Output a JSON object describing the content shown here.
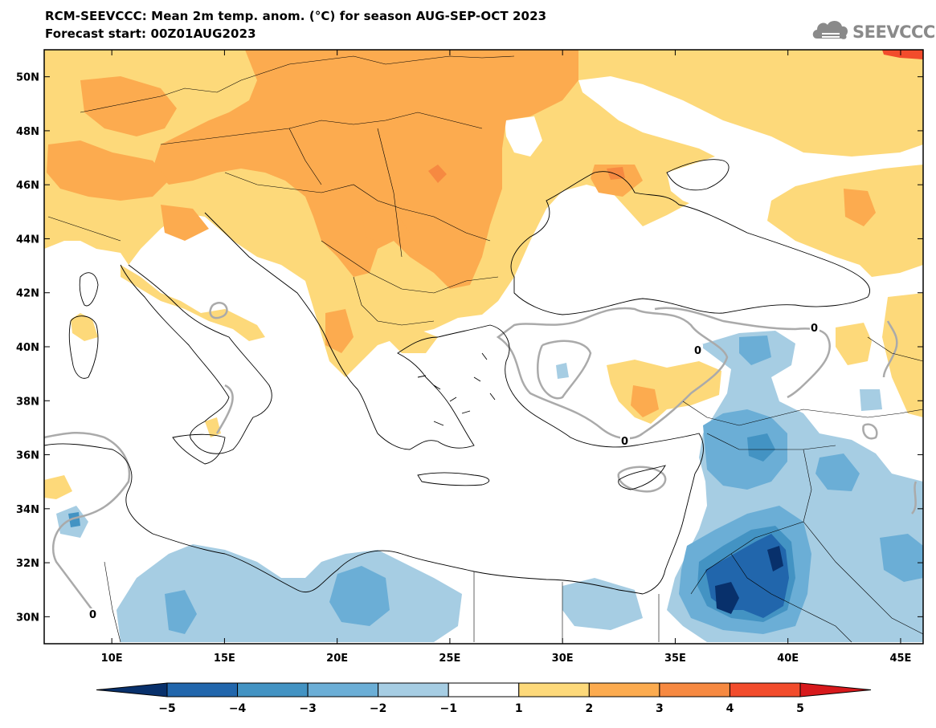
{
  "header": {
    "title": "RCM-SEEVCCC: Mean 2m temp. anom. (°C) for season AUG-SEP-OCT 2023",
    "subtitle": "Forecast start: 00Z01AUG2023"
  },
  "logo": {
    "text": "SEEVCCC",
    "icon": "cloud-icon"
  },
  "map": {
    "lon_range": [
      7,
      46
    ],
    "lat_range": [
      29,
      51
    ],
    "lon_ticks": [
      10,
      15,
      20,
      25,
      30,
      35,
      40,
      45
    ],
    "lon_tick_labels": [
      "10E",
      "15E",
      "20E",
      "25E",
      "30E",
      "35E",
      "40E",
      "45E"
    ],
    "lat_ticks": [
      30,
      32,
      34,
      36,
      38,
      40,
      42,
      44,
      46,
      48,
      50
    ],
    "lat_tick_labels": [
      "30N",
      "32N",
      "34N",
      "36N",
      "38N",
      "40N",
      "42N",
      "44N",
      "46N",
      "48N",
      "50N"
    ],
    "contour_label": "0"
  },
  "colorbar": {
    "labels": [
      "−5",
      "−4",
      "−3",
      "−2",
      "−1",
      "1",
      "2",
      "3",
      "4",
      "5"
    ],
    "colors": [
      "#08306b",
      "#2166ac",
      "#4393c3",
      "#6baed6",
      "#a6cde3",
      "#ffffff",
      "#fdd97a",
      "#fcab4f",
      "#f68941",
      "#f24c2c",
      "#d7191c"
    ]
  },
  "colors": {
    "pos1": "#fdd97a",
    "pos2": "#fcab4f",
    "pos3": "#f68941",
    "pos4": "#f24c2c",
    "neg1": "#a6cde3",
    "neg2": "#6baed6",
    "neg3": "#4393c3",
    "neg4": "#2166ac",
    "neg5": "#08306b",
    "contour": "#aaaaaa"
  }
}
